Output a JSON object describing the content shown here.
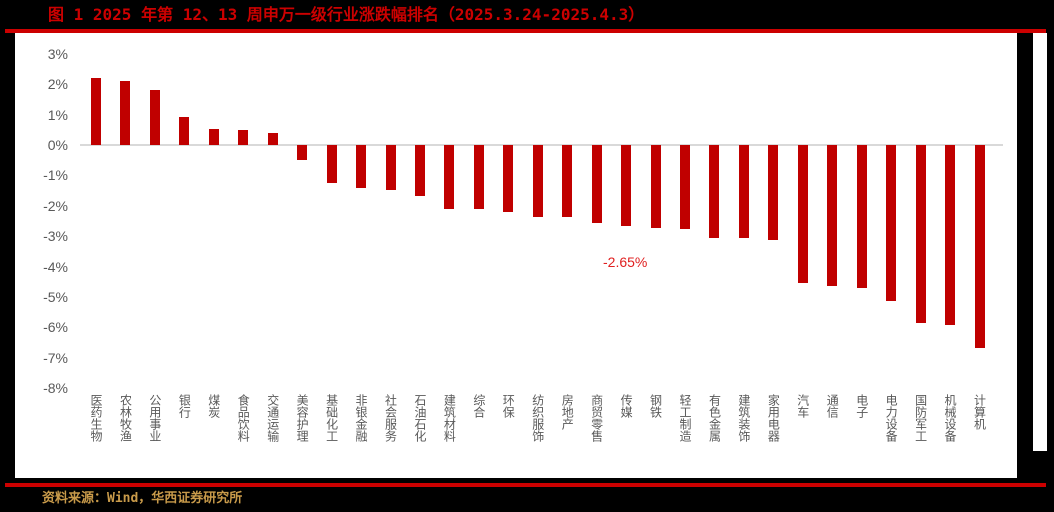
{
  "header": {
    "title": "图 1 2025 年第 12、13 周申万一级行业涨跌幅排名（2025.3.24-2025.4.3）"
  },
  "footer": {
    "source": "资料来源：Wind，华西证券研究所"
  },
  "colors": {
    "bar": "#c00000",
    "title": "#cc0000",
    "rule": "#cc0000",
    "source": "#c89a4a",
    "annotation": "#e02020",
    "axis_text": "#595959",
    "zero_line": "#d9d9d9"
  },
  "chart_data": {
    "type": "bar",
    "title": "图 1 2025 年第 12、13 周申万一级行业涨跌幅排名（2025.3.24-2025.4.3）",
    "xlabel": "",
    "ylabel": "",
    "ylim": [
      -8,
      3
    ],
    "yticks": [
      "3%",
      "2%",
      "1%",
      "0%",
      "-1%",
      "-2%",
      "-3%",
      "-4%",
      "-5%",
      "-6%",
      "-7%",
      "-8%"
    ],
    "ytick_values": [
      3,
      2,
      1,
      0,
      -1,
      -2,
      -3,
      -4,
      -5,
      -6,
      -7,
      -8
    ],
    "grid": false,
    "legend": null,
    "unit": "%",
    "categories": [
      "医药生物",
      "农林牧渔",
      "公用事业",
      "银行",
      "煤炭",
      "食品饮料",
      "交通运输",
      "美容护理",
      "基础化工",
      "非银金融",
      "社会服务",
      "石油石化",
      "建筑材料",
      "综合",
      "环保",
      "纺织服饰",
      "房地产",
      "商贸零售",
      "传媒",
      "钢铁",
      "轻工制造",
      "有色金属",
      "建筑装饰",
      "家用电器",
      "汽车",
      "通信",
      "电子",
      "电力设备",
      "国防军工",
      "机械设备",
      "计算机"
    ],
    "values": [
      2.2,
      2.1,
      1.81,
      0.92,
      0.53,
      0.49,
      0.39,
      -0.49,
      -1.24,
      -1.43,
      -1.48,
      -1.67,
      -2.12,
      -2.12,
      -2.22,
      -2.36,
      -2.36,
      -2.56,
      -2.65,
      -2.72,
      -2.76,
      -3.05,
      -3.05,
      -3.11,
      -4.53,
      -4.63,
      -4.7,
      -5.12,
      -5.85,
      -5.92,
      -6.67
    ],
    "annotations": [
      {
        "text": "-2.65%",
        "category": "传媒",
        "value": -2.65
      }
    ]
  }
}
